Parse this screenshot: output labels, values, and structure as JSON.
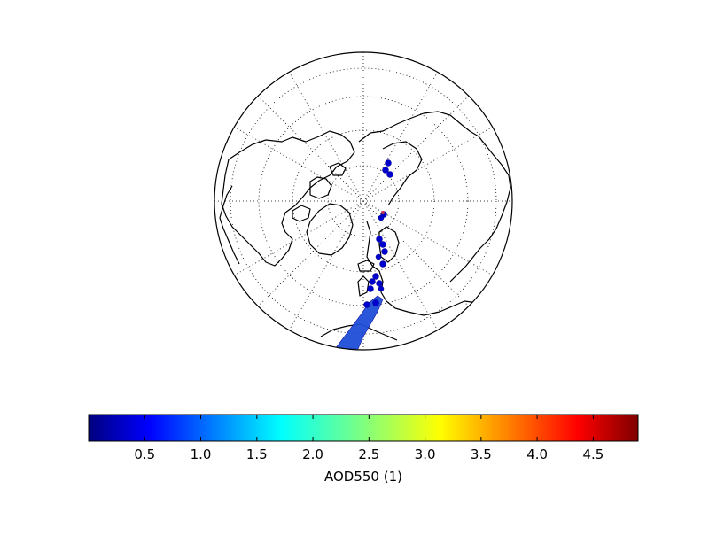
{
  "map": {
    "projection": "north-polar-orthographic",
    "graticule": "dotted",
    "data_color": "#0000cd",
    "swath_color": "#1f4fd8",
    "outlier_color": "#cc3344"
  },
  "colorbar": {
    "label": "AOD550 (1)",
    "min": 0.0,
    "max": 4.9,
    "ticks": [
      "0.5",
      "1.0",
      "1.5",
      "2.0",
      "2.5",
      "3.0",
      "3.5",
      "4.0",
      "4.5"
    ],
    "tick_values": [
      0.5,
      1.0,
      1.5,
      2.0,
      2.5,
      3.0,
      3.5,
      4.0,
      4.5
    ],
    "colormap": "jet",
    "stops": [
      "#00007f",
      "#0000ff",
      "#007fff",
      "#00ffff",
      "#7fff7f",
      "#ffff00",
      "#ff7f00",
      "#ff0000",
      "#7f0000"
    ]
  }
}
